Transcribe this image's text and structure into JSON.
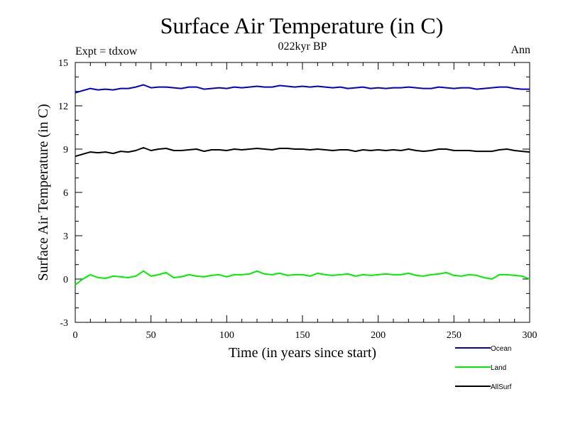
{
  "chart_data": {
    "type": "line",
    "title": "Surface Air Temperature (in C)",
    "subtitle": "022kyr BP",
    "top_left_label": "Expt = tdxow",
    "top_right_label": "Ann",
    "xlabel": "Time (in years since start)",
    "ylabel": "Surface Air Temperature (in C)",
    "xlim": [
      0,
      300
    ],
    "ylim": [
      -3,
      15
    ],
    "x_ticks": [
      0,
      50,
      100,
      150,
      200,
      250,
      300
    ],
    "x_tick_labels": [
      "0",
      "50",
      "100",
      "150",
      "200",
      "250",
      "300"
    ],
    "y_ticks": [
      -3,
      0,
      3,
      6,
      9,
      12,
      15
    ],
    "y_tick_labels": [
      "-3",
      "0",
      "3",
      "6",
      "9",
      "12",
      "15"
    ],
    "grid": false,
    "legend_position": "bottom-right, below plot",
    "series": [
      {
        "name": "Ocean",
        "color": "#0000cc",
        "x": [
          0,
          5,
          10,
          15,
          20,
          25,
          30,
          35,
          40,
          45,
          50,
          55,
          60,
          65,
          70,
          75,
          80,
          85,
          90,
          95,
          100,
          105,
          110,
          115,
          120,
          125,
          130,
          135,
          140,
          145,
          150,
          155,
          160,
          165,
          170,
          175,
          180,
          185,
          190,
          195,
          200,
          205,
          210,
          215,
          220,
          225,
          230,
          235,
          240,
          245,
          250,
          255,
          260,
          265,
          270,
          275,
          280,
          285,
          290,
          295,
          300
        ],
        "values": [
          12.9,
          13.05,
          13.2,
          13.1,
          13.15,
          13.1,
          13.2,
          13.2,
          13.3,
          13.45,
          13.25,
          13.3,
          13.3,
          13.25,
          13.2,
          13.3,
          13.3,
          13.15,
          13.2,
          13.25,
          13.2,
          13.3,
          13.25,
          13.3,
          13.35,
          13.3,
          13.3,
          13.4,
          13.35,
          13.3,
          13.35,
          13.3,
          13.35,
          13.3,
          13.25,
          13.3,
          13.2,
          13.25,
          13.3,
          13.2,
          13.25,
          13.2,
          13.25,
          13.25,
          13.3,
          13.25,
          13.2,
          13.2,
          13.3,
          13.25,
          13.2,
          13.25,
          13.25,
          13.15,
          13.2,
          13.25,
          13.3,
          13.3,
          13.2,
          13.15,
          13.15
        ]
      },
      {
        "name": "Land",
        "color": "#00ee00",
        "x": [
          0,
          5,
          10,
          15,
          20,
          25,
          30,
          35,
          40,
          45,
          50,
          55,
          60,
          65,
          70,
          75,
          80,
          85,
          90,
          95,
          100,
          105,
          110,
          115,
          120,
          125,
          130,
          135,
          140,
          145,
          150,
          155,
          160,
          165,
          170,
          175,
          180,
          185,
          190,
          195,
          200,
          205,
          210,
          215,
          220,
          225,
          230,
          235,
          240,
          245,
          250,
          255,
          260,
          265,
          270,
          275,
          280,
          285,
          290,
          295,
          300
        ],
        "values": [
          -0.4,
          0.0,
          0.3,
          0.1,
          0.05,
          0.2,
          0.15,
          0.1,
          0.2,
          0.55,
          0.2,
          0.3,
          0.45,
          0.1,
          0.15,
          0.3,
          0.2,
          0.15,
          0.25,
          0.3,
          0.15,
          0.3,
          0.3,
          0.35,
          0.55,
          0.35,
          0.3,
          0.4,
          0.25,
          0.3,
          0.3,
          0.2,
          0.4,
          0.3,
          0.25,
          0.3,
          0.35,
          0.2,
          0.3,
          0.25,
          0.3,
          0.35,
          0.3,
          0.3,
          0.4,
          0.25,
          0.2,
          0.3,
          0.35,
          0.45,
          0.25,
          0.2,
          0.3,
          0.25,
          0.1,
          0.0,
          0.3,
          0.3,
          0.25,
          0.2,
          0.0
        ]
      },
      {
        "name": "AllSurf",
        "color": "#000000",
        "x": [
          0,
          5,
          10,
          15,
          20,
          25,
          30,
          35,
          40,
          45,
          50,
          55,
          60,
          65,
          70,
          75,
          80,
          85,
          90,
          95,
          100,
          105,
          110,
          115,
          120,
          125,
          130,
          135,
          140,
          145,
          150,
          155,
          160,
          165,
          170,
          175,
          180,
          185,
          190,
          195,
          200,
          205,
          210,
          215,
          220,
          225,
          230,
          235,
          240,
          245,
          250,
          255,
          260,
          265,
          270,
          275,
          280,
          285,
          290,
          295,
          300
        ],
        "values": [
          8.5,
          8.65,
          8.8,
          8.75,
          8.8,
          8.7,
          8.85,
          8.8,
          8.9,
          9.1,
          8.9,
          9.0,
          9.05,
          8.9,
          8.9,
          8.95,
          9.0,
          8.85,
          8.95,
          8.95,
          8.9,
          9.0,
          8.95,
          9.0,
          9.05,
          9.0,
          8.95,
          9.05,
          9.05,
          9.0,
          9.0,
          8.95,
          9.0,
          8.95,
          8.9,
          8.95,
          8.95,
          8.85,
          8.95,
          8.9,
          8.95,
          8.9,
          8.95,
          8.9,
          9.0,
          8.9,
          8.85,
          8.9,
          9.0,
          9.0,
          8.9,
          8.9,
          8.9,
          8.85,
          8.85,
          8.85,
          8.95,
          9.0,
          8.9,
          8.85,
          8.8
        ]
      }
    ]
  }
}
